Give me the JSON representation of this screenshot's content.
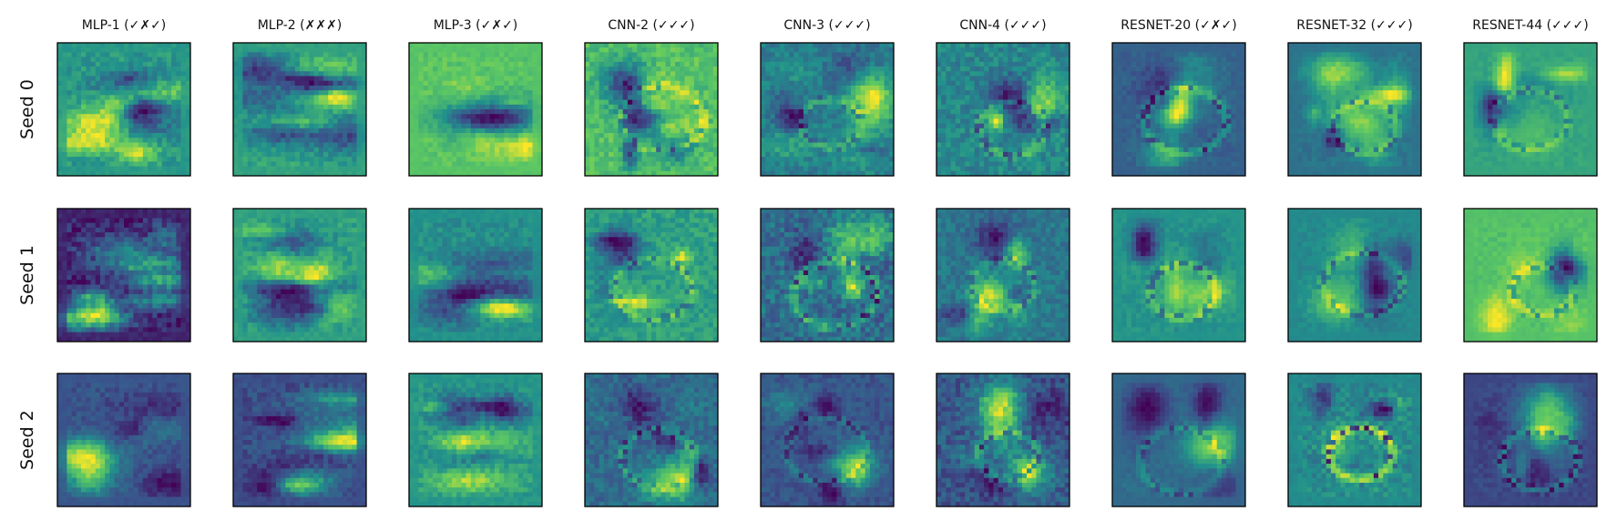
{
  "chart_data": {
    "type": "heatmap",
    "grid": false,
    "colormap": [
      "#440154",
      "#3b528b",
      "#21918c",
      "#5ec962",
      "#fde725"
    ],
    "columns": [
      "MLP-1 (✓✗✓)",
      "MLP-2 (✗✗✗)",
      "MLP-3 (✓✗✓)",
      "CNN-2 (✓✓✓)",
      "CNN-3 (✓✓✓)",
      "CNN-4 (✓✓✓)",
      "RESNET-20 (✓✗✓)",
      "RESNET-32 (✓✓✓)",
      "RESNET-44 (✓✓✓)"
    ],
    "rows": [
      "Seed 0",
      "Seed 1",
      "Seed 2"
    ],
    "pixels_per_side": 28,
    "model_families": [
      "mlp",
      "mlp",
      "mlp",
      "cnn",
      "cnn",
      "cnn",
      "resnet",
      "resnet",
      "resnet"
    ]
  }
}
